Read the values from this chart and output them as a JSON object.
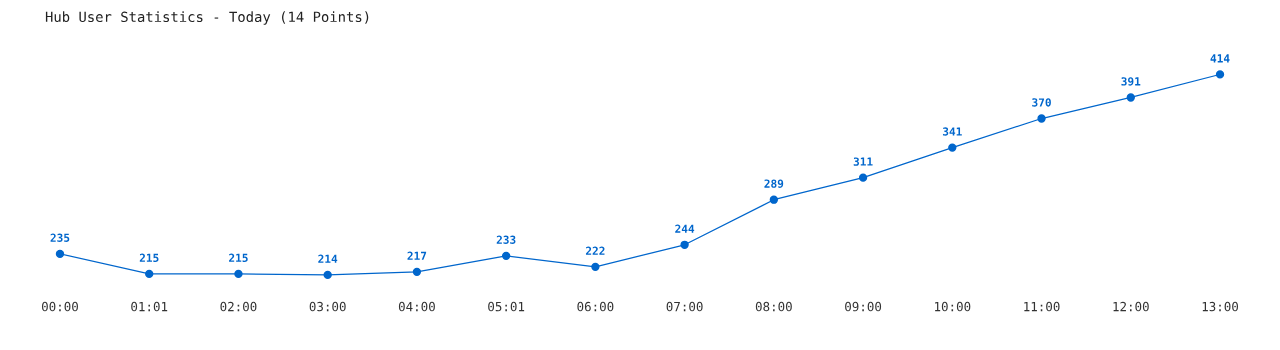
{
  "chart_data": {
    "type": "line",
    "title": "Hub User Statistics - Today (14 Points)",
    "categories": [
      "00:00",
      "01:01",
      "02:00",
      "03:00",
      "04:00",
      "05:01",
      "06:00",
      "07:00",
      "08:00",
      "09:00",
      "10:00",
      "11:00",
      "12:00",
      "13:00"
    ],
    "series": [
      {
        "color": "#0066cc",
        "values": [
          235,
          215,
          215,
          214,
          217,
          233,
          222,
          244,
          289,
          311,
          341,
          370,
          391,
          414
        ]
      }
    ],
    "data_labels": true,
    "marker": "circle",
    "grid": false,
    "legend": false
  }
}
